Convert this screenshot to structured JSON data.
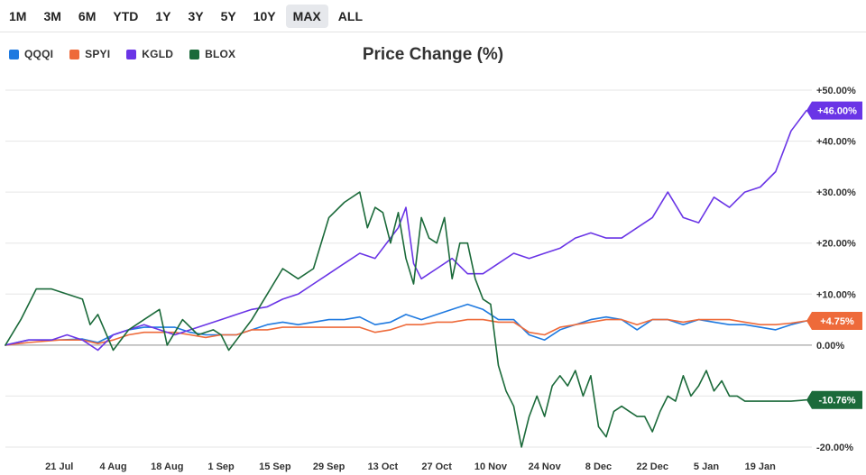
{
  "range_buttons": [
    {
      "label": "1M",
      "active": false
    },
    {
      "label": "3M",
      "active": false
    },
    {
      "label": "6M",
      "active": false
    },
    {
      "label": "YTD",
      "active": false
    },
    {
      "label": "1Y",
      "active": false
    },
    {
      "label": "3Y",
      "active": false
    },
    {
      "label": "5Y",
      "active": false
    },
    {
      "label": "10Y",
      "active": false
    },
    {
      "label": "MAX",
      "active": true
    },
    {
      "label": "ALL",
      "active": false
    }
  ],
  "colors": {
    "QQQI": "#1f7ae0",
    "SPYI": "#ee6a3a",
    "KGLD": "#6a35e6",
    "BLOX": "#1b6a3a",
    "grid": "#e6e6e6",
    "zero": "#b5b5b5"
  },
  "chart_data": {
    "type": "line",
    "title": "Price Change (%)",
    "ylim": [
      -20,
      50
    ],
    "yticks": [
      {
        "v": 50,
        "label": "+50.00%"
      },
      {
        "v": 40,
        "label": "+40.00%"
      },
      {
        "v": 30,
        "label": "+30.00%"
      },
      {
        "v": 20,
        "label": "+20.00%"
      },
      {
        "v": 10,
        "label": "+10.00%"
      },
      {
        "v": 0,
        "label": "0.00%"
      },
      {
        "v": -20,
        "label": "-20.00%"
      }
    ],
    "xlim": [
      0,
      208
    ],
    "xticks": [
      {
        "x": 14,
        "label": "21 Jul"
      },
      {
        "x": 28,
        "label": "4 Aug"
      },
      {
        "x": 42,
        "label": "18 Aug"
      },
      {
        "x": 56,
        "label": "1 Sep"
      },
      {
        "x": 70,
        "label": "15 Sep"
      },
      {
        "x": 84,
        "label": "29 Sep"
      },
      {
        "x": 98,
        "label": "13 Oct"
      },
      {
        "x": 112,
        "label": "27 Oct"
      },
      {
        "x": 126,
        "label": "10 Nov"
      },
      {
        "x": 140,
        "label": "24 Nov"
      },
      {
        "x": 154,
        "label": "8 Dec"
      },
      {
        "x": 168,
        "label": "22 Dec"
      },
      {
        "x": 182,
        "label": "5 Jan"
      },
      {
        "x": 196,
        "label": "19 Jan"
      }
    ],
    "series": [
      {
        "name": "QQQI",
        "last_label": "+4.75%",
        "points": [
          [
            0,
            0
          ],
          [
            6,
            1
          ],
          [
            14,
            1
          ],
          [
            20,
            1.2
          ],
          [
            24,
            0.5
          ],
          [
            28,
            2
          ],
          [
            32,
            3
          ],
          [
            36,
            3.5
          ],
          [
            40,
            3.5
          ],
          [
            44,
            3.5
          ],
          [
            48,
            2.5
          ],
          [
            52,
            2
          ],
          [
            56,
            2
          ],
          [
            60,
            2
          ],
          [
            64,
            3
          ],
          [
            68,
            4
          ],
          [
            72,
            4.5
          ],
          [
            76,
            4
          ],
          [
            80,
            4.5
          ],
          [
            84,
            5
          ],
          [
            88,
            5
          ],
          [
            92,
            5.5
          ],
          [
            96,
            4
          ],
          [
            100,
            4.5
          ],
          [
            104,
            6
          ],
          [
            108,
            5
          ],
          [
            112,
            6
          ],
          [
            116,
            7
          ],
          [
            120,
            8
          ],
          [
            124,
            7
          ],
          [
            128,
            5
          ],
          [
            132,
            5
          ],
          [
            136,
            2
          ],
          [
            140,
            1
          ],
          [
            144,
            3
          ],
          [
            148,
            4
          ],
          [
            152,
            5
          ],
          [
            156,
            5.5
          ],
          [
            160,
            5
          ],
          [
            164,
            3
          ],
          [
            168,
            5
          ],
          [
            172,
            5
          ],
          [
            176,
            4
          ],
          [
            180,
            5
          ],
          [
            184,
            4.5
          ],
          [
            188,
            4
          ],
          [
            192,
            4
          ],
          [
            196,
            3.5
          ],
          [
            200,
            3
          ],
          [
            204,
            4
          ],
          [
            208,
            4.75
          ]
        ]
      },
      {
        "name": "SPYI",
        "last_label": "+4.75%",
        "points": [
          [
            0,
            0
          ],
          [
            6,
            0.5
          ],
          [
            14,
            1
          ],
          [
            20,
            1
          ],
          [
            24,
            0.3
          ],
          [
            28,
            1
          ],
          [
            32,
            2
          ],
          [
            36,
            2.5
          ],
          [
            40,
            2.5
          ],
          [
            44,
            2.5
          ],
          [
            48,
            2
          ],
          [
            52,
            1.5
          ],
          [
            56,
            2
          ],
          [
            60,
            2
          ],
          [
            64,
            3
          ],
          [
            68,
            3
          ],
          [
            72,
            3.5
          ],
          [
            76,
            3.5
          ],
          [
            80,
            3.5
          ],
          [
            84,
            3.5
          ],
          [
            88,
            3.5
          ],
          [
            92,
            3.5
          ],
          [
            96,
            2.5
          ],
          [
            100,
            3
          ],
          [
            104,
            4
          ],
          [
            108,
            4
          ],
          [
            112,
            4.5
          ],
          [
            116,
            4.5
          ],
          [
            120,
            5
          ],
          [
            124,
            5
          ],
          [
            128,
            4.5
          ],
          [
            132,
            4.5
          ],
          [
            136,
            2.5
          ],
          [
            140,
            2
          ],
          [
            144,
            3.5
          ],
          [
            148,
            4
          ],
          [
            152,
            4.5
          ],
          [
            156,
            5
          ],
          [
            160,
            5
          ],
          [
            164,
            4
          ],
          [
            168,
            5
          ],
          [
            172,
            5
          ],
          [
            176,
            4.5
          ],
          [
            180,
            5
          ],
          [
            184,
            5
          ],
          [
            188,
            5
          ],
          [
            192,
            4.5
          ],
          [
            196,
            4
          ],
          [
            200,
            4
          ],
          [
            204,
            4.3
          ],
          [
            208,
            4.75
          ]
        ]
      },
      {
        "name": "KGLD",
        "last_label": "+46.00%",
        "points": [
          [
            0,
            0
          ],
          [
            6,
            1
          ],
          [
            12,
            1
          ],
          [
            16,
            2
          ],
          [
            20,
            1
          ],
          [
            24,
            -1
          ],
          [
            28,
            2
          ],
          [
            32,
            3
          ],
          [
            36,
            4
          ],
          [
            40,
            3
          ],
          [
            44,
            2
          ],
          [
            48,
            3
          ],
          [
            52,
            4
          ],
          [
            56,
            5
          ],
          [
            60,
            6
          ],
          [
            64,
            7
          ],
          [
            68,
            7.5
          ],
          [
            72,
            9
          ],
          [
            76,
            10
          ],
          [
            80,
            12
          ],
          [
            84,
            14
          ],
          [
            88,
            16
          ],
          [
            92,
            18
          ],
          [
            96,
            17
          ],
          [
            100,
            21
          ],
          [
            102,
            23
          ],
          [
            104,
            27
          ],
          [
            106,
            16
          ],
          [
            108,
            13
          ],
          [
            112,
            15
          ],
          [
            116,
            17
          ],
          [
            120,
            14
          ],
          [
            124,
            14
          ],
          [
            128,
            16
          ],
          [
            132,
            18
          ],
          [
            136,
            17
          ],
          [
            140,
            18
          ],
          [
            144,
            19
          ],
          [
            148,
            21
          ],
          [
            152,
            22
          ],
          [
            156,
            21
          ],
          [
            160,
            21
          ],
          [
            164,
            23
          ],
          [
            168,
            25
          ],
          [
            172,
            30
          ],
          [
            176,
            25
          ],
          [
            180,
            24
          ],
          [
            184,
            29
          ],
          [
            188,
            27
          ],
          [
            192,
            30
          ],
          [
            196,
            31
          ],
          [
            200,
            34
          ],
          [
            204,
            42
          ],
          [
            208,
            46
          ]
        ]
      },
      {
        "name": "BLOX",
        "last_label": "-10.76%",
        "points": [
          [
            0,
            0
          ],
          [
            4,
            5
          ],
          [
            8,
            11
          ],
          [
            12,
            11
          ],
          [
            16,
            10
          ],
          [
            20,
            9
          ],
          [
            22,
            4
          ],
          [
            24,
            6
          ],
          [
            28,
            -1
          ],
          [
            32,
            3
          ],
          [
            36,
            5
          ],
          [
            40,
            7
          ],
          [
            42,
            0
          ],
          [
            46,
            5
          ],
          [
            50,
            2
          ],
          [
            54,
            3
          ],
          [
            56,
            2
          ],
          [
            58,
            -1
          ],
          [
            60,
            1
          ],
          [
            64,
            5
          ],
          [
            68,
            10
          ],
          [
            72,
            15
          ],
          [
            76,
            13
          ],
          [
            80,
            15
          ],
          [
            84,
            25
          ],
          [
            88,
            28
          ],
          [
            92,
            30
          ],
          [
            94,
            23
          ],
          [
            96,
            27
          ],
          [
            98,
            26
          ],
          [
            100,
            20
          ],
          [
            102,
            26
          ],
          [
            104,
            17
          ],
          [
            106,
            12
          ],
          [
            108,
            25
          ],
          [
            110,
            21
          ],
          [
            112,
            20
          ],
          [
            114,
            25
          ],
          [
            116,
            13
          ],
          [
            118,
            20
          ],
          [
            120,
            20
          ],
          [
            122,
            13
          ],
          [
            124,
            9
          ],
          [
            126,
            8
          ],
          [
            128,
            -4
          ],
          [
            130,
            -9
          ],
          [
            132,
            -12
          ],
          [
            134,
            -20
          ],
          [
            136,
            -14
          ],
          [
            138,
            -10
          ],
          [
            140,
            -14
          ],
          [
            142,
            -8
          ],
          [
            144,
            -6
          ],
          [
            146,
            -8
          ],
          [
            148,
            -5
          ],
          [
            150,
            -10
          ],
          [
            152,
            -6
          ],
          [
            154,
            -16
          ],
          [
            156,
            -18
          ],
          [
            158,
            -13
          ],
          [
            160,
            -12
          ],
          [
            162,
            -13
          ],
          [
            164,
            -14
          ],
          [
            166,
            -14
          ],
          [
            168,
            -17
          ],
          [
            170,
            -13
          ],
          [
            172,
            -10
          ],
          [
            174,
            -11
          ],
          [
            176,
            -6
          ],
          [
            178,
            -10
          ],
          [
            180,
            -8
          ],
          [
            182,
            -5
          ],
          [
            184,
            -9
          ],
          [
            186,
            -7
          ],
          [
            188,
            -10
          ],
          [
            190,
            -10
          ],
          [
            192,
            -11
          ],
          [
            194,
            -11
          ],
          [
            196,
            -11
          ],
          [
            200,
            -11
          ],
          [
            204,
            -11
          ],
          [
            208,
            -10.76
          ]
        ]
      }
    ]
  }
}
